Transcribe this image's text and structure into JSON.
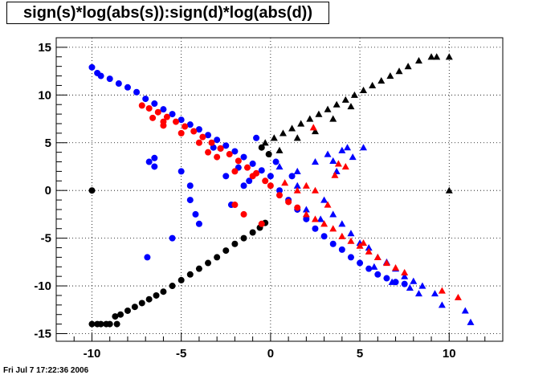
{
  "title": "sign(s)*log(abs(s)):sign(d)*log(abs(d))",
  "footer_timestamp": "Fri Jul  7 17:22:36 2006",
  "chart_data": {
    "type": "scatter",
    "title": "sign(s)*log(abs(s)):sign(d)*log(abs(d))",
    "xlabel": "",
    "ylabel": "",
    "xlim": [
      -12,
      13
    ],
    "ylim": [
      -15.8,
      16
    ],
    "x_ticks": [
      -10,
      -5,
      0,
      5,
      10
    ],
    "y_ticks": [
      -15,
      -10,
      -5,
      0,
      5,
      10,
      15
    ],
    "grid": true,
    "legend": "none",
    "series": [
      {
        "color": "#000000",
        "marker": "circle",
        "points": [
          [
            -10,
            0
          ],
          [
            -10,
            -14
          ],
          [
            -9.7,
            -14
          ],
          [
            -9.5,
            -14
          ],
          [
            -9.2,
            -14
          ],
          [
            -9,
            -14
          ],
          [
            -8.6,
            -14
          ],
          [
            -8.7,
            -13.2
          ],
          [
            -8.4,
            -13
          ],
          [
            -8,
            -12.6
          ],
          [
            -7.6,
            -12.2
          ],
          [
            -7.2,
            -11.8
          ],
          [
            -6.8,
            -11.4
          ],
          [
            -6.4,
            -11
          ],
          [
            -6,
            -10.6
          ],
          [
            -5.5,
            -10
          ],
          [
            -5,
            -9.4
          ],
          [
            -4.5,
            -8.8
          ],
          [
            -4,
            -8.2
          ],
          [
            -3.5,
            -7.6
          ],
          [
            -3,
            -7
          ],
          [
            -2.5,
            -6.3
          ],
          [
            -2,
            -5.6
          ],
          [
            -1.5,
            -5
          ],
          [
            -1,
            -4.4
          ],
          [
            -0.6,
            -3.9
          ],
          [
            -0.3,
            -3.4
          ],
          [
            -0.1,
            3.8
          ],
          [
            -0.5,
            4.5
          ]
        ]
      },
      {
        "color": "#000000",
        "marker": "triangle",
        "points": [
          [
            -0.3,
            5
          ],
          [
            0.2,
            5.5
          ],
          [
            0.7,
            6
          ],
          [
            1.2,
            6.5
          ],
          [
            1.7,
            7
          ],
          [
            2.2,
            7.5
          ],
          [
            2.7,
            8
          ],
          [
            3.2,
            8.5
          ],
          [
            3.7,
            9
          ],
          [
            4.2,
            9.5
          ],
          [
            4.7,
            10
          ],
          [
            5.2,
            10.5
          ],
          [
            5.7,
            11
          ],
          [
            6.2,
            11.5
          ],
          [
            6.7,
            12
          ],
          [
            7.2,
            12.5
          ],
          [
            7.7,
            13
          ],
          [
            8.3,
            13.6
          ],
          [
            9,
            14
          ],
          [
            9.3,
            14
          ],
          [
            10,
            14
          ],
          [
            10,
            0
          ],
          [
            0.5,
            4.2
          ],
          [
            1.5,
            5.5
          ],
          [
            2.5,
            6.2
          ],
          [
            3.5,
            7.5
          ],
          [
            4.5,
            8.8
          ]
        ]
      },
      {
        "color": "#0000ff",
        "marker": "circle",
        "points": [
          [
            -10,
            12.9
          ],
          [
            -9.7,
            12.3
          ],
          [
            -9.5,
            12
          ],
          [
            -9,
            11.7
          ],
          [
            -8.5,
            11.2
          ],
          [
            -8,
            10.8
          ],
          [
            -7.5,
            10.3
          ],
          [
            -7,
            9.6
          ],
          [
            -6.5,
            9.1
          ],
          [
            -6,
            8.5
          ],
          [
            -5.5,
            8
          ],
          [
            -5,
            7.4
          ],
          [
            -4.5,
            6.9
          ],
          [
            -4,
            6.4
          ],
          [
            -3.5,
            5.8
          ],
          [
            -3,
            5.3
          ],
          [
            -2.5,
            4.7
          ],
          [
            -2,
            4.1
          ],
          [
            -1.5,
            3.5
          ],
          [
            -1,
            2.8
          ],
          [
            -0.5,
            2.1
          ],
          [
            0,
            1.5
          ],
          [
            -6.5,
            3.4
          ],
          [
            -6.8,
            3
          ],
          [
            -6.5,
            2.5
          ],
          [
            -5,
            2
          ],
          [
            -4.5,
            0.5
          ],
          [
            -4.5,
            -1
          ],
          [
            -4.2,
            -2.5
          ],
          [
            -4,
            -3.5
          ],
          [
            -5.5,
            -5
          ],
          [
            -6.9,
            -7
          ],
          [
            -2.8,
            4.4
          ],
          [
            -1.8,
            2.4
          ],
          [
            -0.8,
            5.5
          ],
          [
            -1.2,
            1
          ],
          [
            0.5,
            0
          ],
          [
            1,
            -1
          ],
          [
            1.5,
            -2
          ],
          [
            2,
            -3
          ],
          [
            2.5,
            -4
          ],
          [
            3,
            -4.8
          ],
          [
            3.5,
            -5.6
          ],
          [
            4,
            -6.2
          ],
          [
            4.5,
            -7
          ],
          [
            5,
            -7.6
          ],
          [
            5.5,
            -8.2
          ],
          [
            6,
            -8.8
          ],
          [
            6.5,
            -9.2
          ],
          [
            7,
            -9.6
          ],
          [
            7.5,
            -9.8
          ],
          [
            -2.2,
            -1.5
          ],
          [
            -2.5,
            1.5
          ],
          [
            -3.2,
            4.5
          ],
          [
            -1.5,
            0.5
          ],
          [
            0.3,
            3
          ],
          [
            1.2,
            1.5
          ]
        ]
      },
      {
        "color": "#0000ff",
        "marker": "triangle",
        "points": [
          [
            0.5,
            2.5
          ],
          [
            1.5,
            2
          ],
          [
            2.5,
            3
          ],
          [
            3.2,
            3.8
          ],
          [
            3.5,
            3.1
          ],
          [
            4,
            4.2
          ],
          [
            4.3,
            4.5
          ],
          [
            5.2,
            4.5
          ],
          [
            4.6,
            3.5
          ],
          [
            3.7,
            2
          ],
          [
            3,
            -1
          ],
          [
            3.5,
            -2.5
          ],
          [
            4,
            -3.5
          ],
          [
            4.5,
            -4.5
          ],
          [
            5,
            -5.5
          ],
          [
            5.5,
            -6
          ],
          [
            6,
            -7
          ],
          [
            6.5,
            -7.5
          ],
          [
            7,
            -8.2
          ],
          [
            7.5,
            -9
          ],
          [
            8,
            -9.5
          ],
          [
            8.5,
            -10
          ],
          [
            8.3,
            -10.8
          ],
          [
            9.2,
            -10.8
          ],
          [
            9.6,
            -12
          ],
          [
            10.9,
            -12.6
          ],
          [
            11.2,
            -13.8
          ],
          [
            7.8,
            -10.2
          ],
          [
            6.8,
            -9.6
          ],
          [
            5.8,
            -8
          ],
          [
            2,
            -2
          ],
          [
            2.8,
            -3
          ],
          [
            1.5,
            0.5
          ]
        ]
      },
      {
        "color": "#ff0000",
        "marker": "circle",
        "points": [
          [
            -7.2,
            8.9
          ],
          [
            -6.8,
            8.6
          ],
          [
            -6.3,
            8.2
          ],
          [
            -5.8,
            7.7
          ],
          [
            -5.3,
            7.2
          ],
          [
            -4.8,
            6.7
          ],
          [
            -4.3,
            6.2
          ],
          [
            -3.8,
            5.6
          ],
          [
            -3.3,
            5
          ],
          [
            -2.8,
            4.4
          ],
          [
            -2.3,
            3.8
          ],
          [
            -1.8,
            3.1
          ],
          [
            -1.3,
            2.4
          ],
          [
            -0.8,
            1.8
          ],
          [
            -0.3,
            1
          ],
          [
            -6.6,
            7.6
          ],
          [
            -6,
            7.2
          ],
          [
            -5,
            6
          ],
          [
            -4,
            5
          ],
          [
            -3,
            3.5
          ],
          [
            -3.5,
            4
          ],
          [
            -2,
            2
          ],
          [
            -1,
            1.5
          ],
          [
            0,
            0.5
          ],
          [
            0.5,
            -0.5
          ],
          [
            1,
            -1.2
          ],
          [
            1.5,
            -1.8
          ],
          [
            -2,
            -1.5
          ],
          [
            -1.5,
            -2.5
          ],
          [
            -0.5,
            -3.5
          ],
          [
            -6,
            6.8
          ]
        ]
      },
      {
        "color": "#ff0000",
        "marker": "triangle",
        "points": [
          [
            2,
            -2.5
          ],
          [
            2.5,
            -3
          ],
          [
            3,
            -3.5
          ],
          [
            3.5,
            -4
          ],
          [
            4,
            -4.8
          ],
          [
            4.5,
            -5.3
          ],
          [
            5,
            -5.8
          ],
          [
            5.5,
            -6.4
          ],
          [
            6,
            -7
          ],
          [
            6.5,
            -7.6
          ],
          [
            7,
            -8.1
          ],
          [
            7.5,
            -8.6
          ],
          [
            5.2,
            -5.5
          ],
          [
            3.8,
            2.8
          ],
          [
            4.2,
            2.5
          ],
          [
            3.6,
            1.6
          ],
          [
            2.5,
            0
          ],
          [
            1.5,
            0
          ],
          [
            0.8,
            0.8
          ],
          [
            9.6,
            -10.5
          ],
          [
            10.5,
            -11.2
          ],
          [
            2.4,
            6.6
          ],
          [
            3.2,
            -1.5
          ],
          [
            2,
            0.5
          ]
        ]
      }
    ]
  }
}
